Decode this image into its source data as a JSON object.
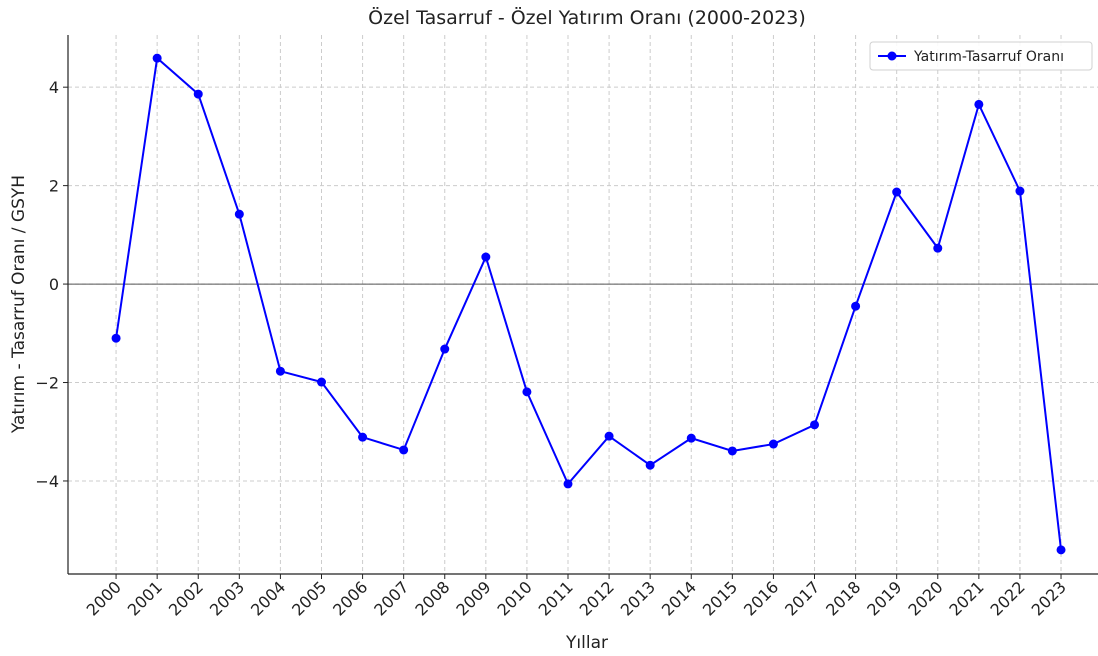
{
  "chart_data": {
    "type": "line",
    "title": "Özel Tasarruf - Özel Yatırım Oranı (2000-2023)",
    "x_label": "Yıllar",
    "y_label": "Yatırım - Tasarruf Oranı / GSYH",
    "x": [
      2000,
      2001,
      2002,
      2003,
      2004,
      2005,
      2006,
      2007,
      2008,
      2009,
      2010,
      2011,
      2012,
      2013,
      2014,
      2015,
      2016,
      2017,
      2018,
      2019,
      2020,
      2021,
      2022,
      2023
    ],
    "series": [
      {
        "name": "Yatırım-Tasarruf Oranı",
        "color": "#0000ff",
        "values": [
          -1.1,
          4.59,
          3.86,
          1.42,
          -1.77,
          -1.99,
          -3.11,
          -3.37,
          -1.32,
          0.55,
          -2.19,
          -4.06,
          -3.09,
          -3.68,
          -3.13,
          -3.39,
          -3.25,
          -2.86,
          -0.45,
          1.87,
          0.73,
          3.65,
          1.89,
          -5.4
        ]
      }
    ],
    "xlim": [
      1998.83,
      2023.9
    ],
    "xticks": [
      2000,
      2001,
      2002,
      2003,
      2004,
      2005,
      2006,
      2007,
      2008,
      2009,
      2010,
      2011,
      2012,
      2013,
      2014,
      2015,
      2016,
      2017,
      2018,
      2019,
      2020,
      2021,
      2022,
      2023
    ],
    "ylim": [
      -5.89,
      5.06
    ],
    "yticks": [
      {
        "value": -4,
        "label": "−4"
      },
      {
        "value": -2,
        "label": "−2"
      },
      0,
      2,
      4
    ],
    "reference_line": 0,
    "grid": true,
    "legend": "upper right"
  }
}
